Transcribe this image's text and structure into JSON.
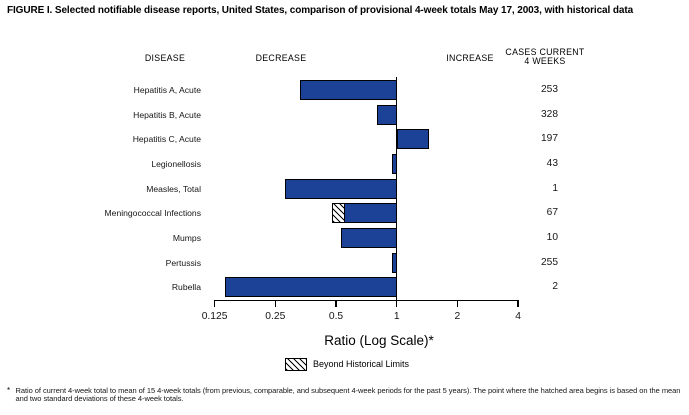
{
  "figure": {
    "title": "FIGURE I. Selected notifiable disease reports, United States, comparison of provisional 4-week totals May 17, 2003, with historical data"
  },
  "columns": {
    "disease": "DISEASE",
    "decrease": "DECREASE",
    "increase": "INCREASE",
    "cases_line1": "CASES CURRENT",
    "cases_line2": "4 WEEKS"
  },
  "chart_data": {
    "type": "bar",
    "orientation": "horizontal",
    "x_scale": "log2",
    "xlabel": "Ratio (Log Scale)*",
    "xlim": [
      0.125,
      4
    ],
    "baseline": 1,
    "ticks": [
      0.125,
      0.25,
      0.5,
      1,
      2,
      4
    ],
    "tick_labels": [
      "0.125",
      "0.25",
      "0.5",
      "1",
      "2",
      "4"
    ],
    "bar_color": "#1B4296",
    "rows": [
      {
        "label": "Hepatitis A, Acute",
        "ratio": 0.33,
        "cases": "253"
      },
      {
        "label": "Hepatitis B, Acute",
        "ratio": 0.8,
        "cases": "328"
      },
      {
        "label": "Hepatitis C, Acute",
        "ratio": 1.45,
        "cases": "197"
      },
      {
        "label": "Legionellosis",
        "ratio": 0.95,
        "cases": "43"
      },
      {
        "label": "Measles, Total",
        "ratio": 0.28,
        "cases": "1"
      },
      {
        "label": "Meningococcal Infections",
        "ratio": 0.48,
        "cases": "67",
        "beyond_historical_limit": true,
        "historical_limit_ratio": 0.55
      },
      {
        "label": "Mumps",
        "ratio": 0.53,
        "cases": "10"
      },
      {
        "label": "Pertussis",
        "ratio": 0.95,
        "cases": "255"
      },
      {
        "label": "Rubella",
        "ratio": 0.14,
        "cases": "2"
      }
    ]
  },
  "legend": {
    "label": "Beyond Historical Limits"
  },
  "footnote": {
    "marker": "*",
    "text": "Ratio of current 4-week total to mean of 15 4-week totals (from previous, comparable, and subsequent 4-week periods for the past 5 years). The point where the hatched area begins is based on the mean and two standard deviations of these 4-week totals."
  }
}
